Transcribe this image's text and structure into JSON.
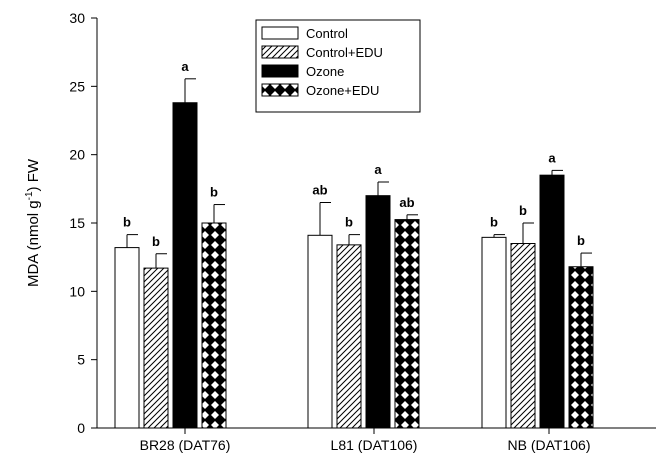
{
  "chart_data": {
    "type": "bar",
    "ylabel_parts": [
      "MDA (nmol g",
      "-1",
      ") FW"
    ],
    "xlabel": "",
    "ylim": [
      0,
      30
    ],
    "yticks": [
      0,
      5,
      10,
      15,
      20,
      25,
      30
    ],
    "categories": [
      "BR28 (DAT76)",
      "L81 (DAT106)",
      "NB (DAT106)"
    ],
    "series": [
      {
        "name": "Control",
        "pattern": "empty",
        "values": [
          13.2,
          14.1,
          13.95
        ],
        "errors": [
          0.95,
          2.4,
          0.2
        ],
        "labels": [
          "b",
          "ab",
          "b"
        ]
      },
      {
        "name": "Control+EDU",
        "pattern": "hatch",
        "values": [
          11.7,
          13.4,
          13.5
        ],
        "errors": [
          1.05,
          0.75,
          1.5
        ],
        "labels": [
          "b",
          "b",
          "b"
        ]
      },
      {
        "name": "Ozone",
        "pattern": "solid",
        "values": [
          23.8,
          17.0,
          18.5
        ],
        "errors": [
          1.75,
          1.0,
          0.35
        ],
        "labels": [
          "a",
          "a",
          "a"
        ]
      },
      {
        "name": "Ozone+EDU",
        "pattern": "diamond",
        "values": [
          15.0,
          15.25,
          11.8
        ],
        "errors": [
          1.35,
          0.35,
          1.0
        ],
        "labels": [
          "b",
          "ab",
          "b"
        ]
      }
    ],
    "legend_position": "top-center",
    "colors": {
      "fill_solid": "#000000",
      "fill_empty": "#ffffff",
      "stroke": "#000000"
    }
  }
}
